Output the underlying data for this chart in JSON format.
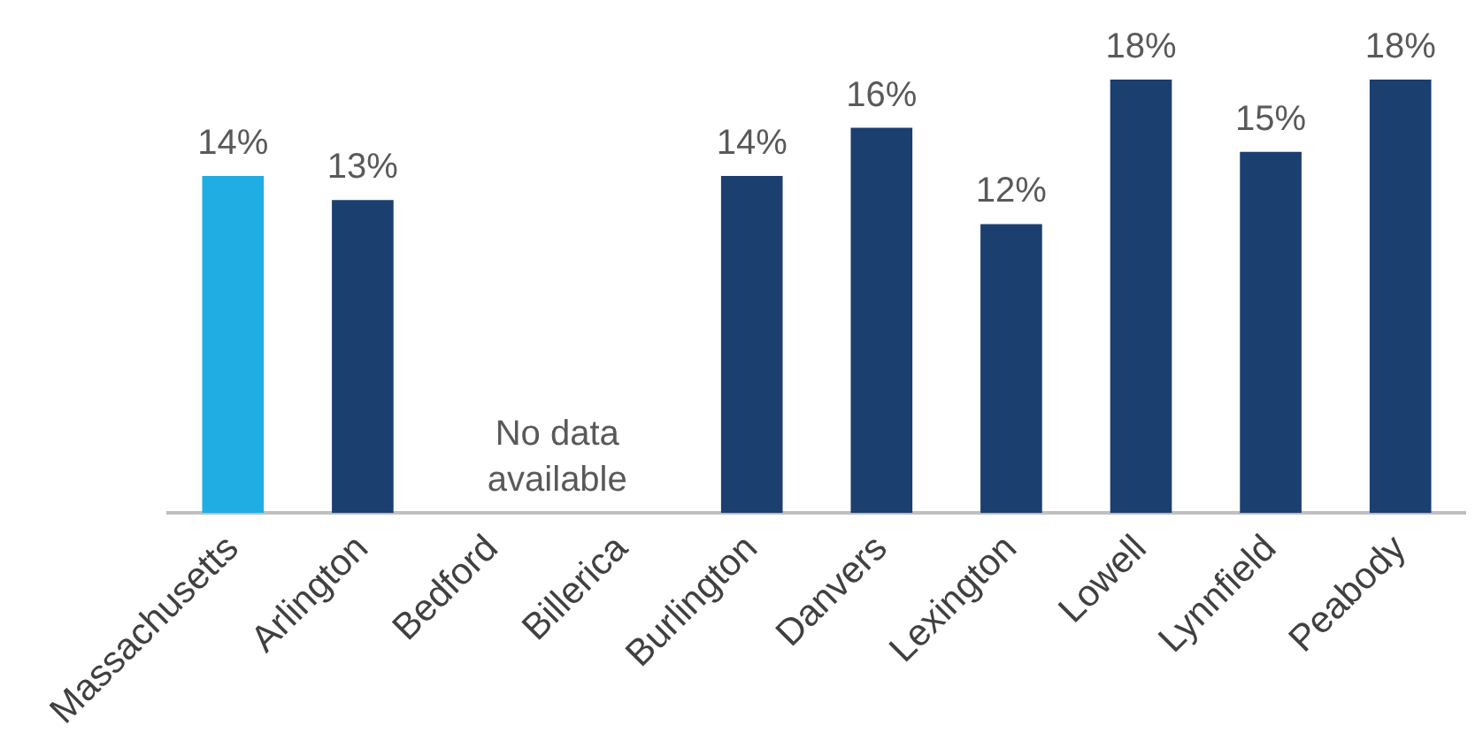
{
  "chart_data": {
    "type": "bar",
    "categories": [
      "Massachusetts",
      "Arlington",
      "Bedford",
      "Billerica",
      "Burlington",
      "Danvers",
      "Lexington",
      "Lowell",
      "Lynnfield",
      "Peabody"
    ],
    "values": [
      14,
      13,
      null,
      null,
      14,
      16,
      12,
      18,
      15,
      18
    ],
    "value_labels": [
      "14%",
      "13%",
      null,
      null,
      "14%",
      "16%",
      "12%",
      "18%",
      "15%",
      "18%"
    ],
    "colors": [
      "#1fade4",
      "#1b3f6f",
      "#1b3f6f",
      "#1b3f6f",
      "#1b3f6f",
      "#1b3f6f",
      "#1b3f6f",
      "#1b3f6f",
      "#1b3f6f",
      "#1b3f6f"
    ],
    "annotations": [
      "No data\navailable"
    ],
    "legend": false,
    "grid": false
  }
}
